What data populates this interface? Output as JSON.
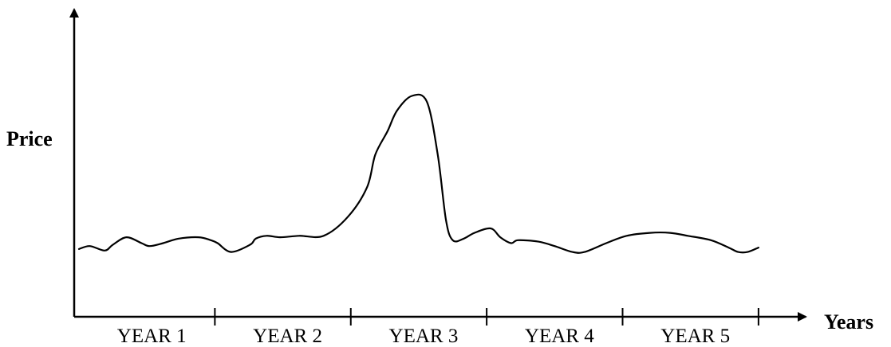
{
  "chart_data": {
    "type": "line",
    "title": "",
    "xlabel": "Years",
    "ylabel": "Price",
    "categories": [
      "YEAR 1",
      "YEAR 2",
      "YEAR 3",
      "YEAR 4",
      "YEAR 5"
    ],
    "xlim": [
      0,
      5.3
    ],
    "ylim": [
      0,
      100
    ],
    "grid": false,
    "legend": "none",
    "series": [
      {
        "x": [
          0,
          0.08,
          0.19,
          0.25,
          0.35,
          0.46,
          0.52,
          0.62,
          0.73,
          0.88,
          0.97,
          1.02,
          1.12,
          1.26,
          1.3,
          1.38,
          1.48,
          1.62,
          1.8,
          1.98,
          2.12,
          2.18,
          2.27,
          2.34,
          2.45,
          2.56,
          2.64,
          2.7,
          2.75,
          2.83,
          2.91,
          3.03,
          3.1,
          3.18,
          3.23,
          3.38,
          3.5,
          3.63,
          3.72,
          3.88,
          4.03,
          4.2,
          4.35,
          4.48,
          4.65,
          4.78,
          4.85,
          4.92,
          5.0
        ],
        "y": [
          23,
          24,
          22.5,
          24.5,
          27,
          25,
          24,
          25,
          26.5,
          27,
          26,
          25,
          22,
          24.5,
          26.5,
          27.5,
          27,
          27.5,
          27.5,
          34,
          44,
          55,
          63,
          70,
          75,
          73,
          55,
          33,
          26,
          26.5,
          28.5,
          30,
          27,
          25,
          26,
          25.5,
          24,
          22,
          22,
          25,
          27.5,
          28.5,
          28.5,
          27.5,
          26,
          23.5,
          22,
          22,
          23.5
        ]
      }
    ]
  }
}
